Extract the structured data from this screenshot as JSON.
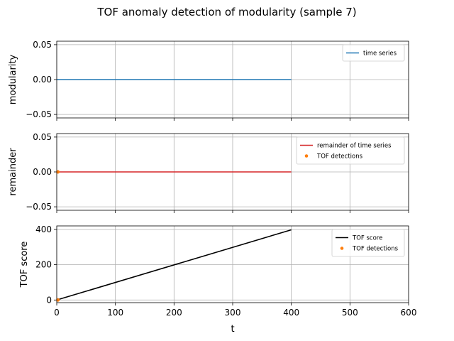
{
  "chart_data": {
    "title": "TOF anomaly detection of modularity (sample 7)",
    "xlabel": "t",
    "xlim": [
      0,
      600
    ],
    "xticks": [
      0,
      100,
      200,
      300,
      400,
      500,
      600
    ],
    "grid": true,
    "panels": [
      {
        "type": "line",
        "ylabel": "modularity",
        "ylim": [
          -0.055,
          0.055
        ],
        "yticks": [
          -0.05,
          0.0,
          0.05
        ],
        "yticklabels": [
          "−0.05",
          "0.00",
          "0.05"
        ],
        "legend_placement": "top-right",
        "series": [
          {
            "name": "time series",
            "kind": "line",
            "color": "#1f77b4",
            "x": [
              0,
              400
            ],
            "y": [
              0,
              0
            ]
          }
        ]
      },
      {
        "type": "line",
        "ylabel": "remainder",
        "ylim": [
          -0.055,
          0.055
        ],
        "yticks": [
          -0.05,
          0.0,
          0.05
        ],
        "yticklabels": [
          "−0.05",
          "0.00",
          "0.05"
        ],
        "legend_placement": "top-right",
        "series": [
          {
            "name": "remainder of time series",
            "kind": "line",
            "color": "#d62728",
            "x": [
              0,
              400
            ],
            "y": [
              0,
              0
            ]
          },
          {
            "name": "TOF detections",
            "kind": "scatter",
            "color": "#ff7f0e",
            "x": [
              2
            ],
            "y": [
              0
            ]
          }
        ]
      },
      {
        "type": "line",
        "ylabel": "TOF score",
        "ylim": [
          -15,
          420
        ],
        "yticks": [
          0,
          200,
          400
        ],
        "yticklabels": [
          "0",
          "200",
          "400"
        ],
        "legend_placement": "top-right",
        "series": [
          {
            "name": "TOF score",
            "kind": "line",
            "color": "#000000",
            "x": [
              0,
              400
            ],
            "y": [
              0,
              398
            ]
          },
          {
            "name": "TOF detections",
            "kind": "scatter",
            "color": "#ff7f0e",
            "x": [
              2
            ],
            "y": [
              0
            ]
          }
        ]
      }
    ]
  }
}
